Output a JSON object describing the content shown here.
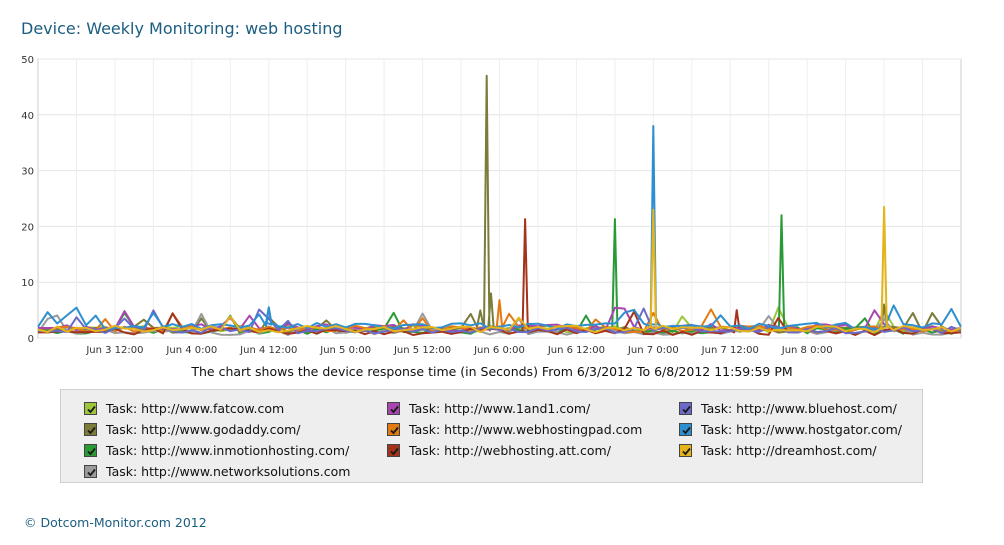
{
  "page": {
    "title": "Device: Weekly Monitoring: web hosting",
    "subtitle": "The chart shows the device response time (in Seconds) From 6/3/2012 To 6/8/2012 11:59:59 PM",
    "footer": "© Dotcom-Monitor.com 2012"
  },
  "chart_data": {
    "type": "line",
    "title": "Device: Weekly Monitoring: web hosting",
    "xlabel": "",
    "ylabel": "",
    "ylim": [
      0,
      50
    ],
    "yticks": [
      "0",
      "10",
      "20",
      "30",
      "40",
      "50"
    ],
    "xlim": [
      "6/3/2012 00:00",
      "6/8/2012 23:59:59"
    ],
    "xticks": [
      "Jun 3 12:00",
      "Jun 4 0:00",
      "Jun 4 12:00",
      "Jun 5 0:00",
      "Jun 5 12:00",
      "Jun 6 0:00",
      "Jun 6 12:00",
      "Jun 7 0:00",
      "Jun 7 12:00",
      "Jun 8 0:00"
    ],
    "grid": true,
    "legend_placement": "bottom",
    "series": [
      {
        "name": "Task: http://www.fatcow.com",
        "color": "#9ec63b",
        "points": [
          [
            "6/3/2012 00:00",
            1.6
          ],
          [
            "6/4/2012 00:00",
            1.7
          ],
          [
            "6/5/2012 00:00",
            1.6
          ],
          [
            "6/6/2012 00:00",
            1.5
          ],
          [
            "6/7/2012 00:00",
            1.6
          ],
          [
            "6/8/2012 00:00",
            1.5
          ],
          [
            "6/8/2012 23:59",
            1.6
          ]
        ]
      },
      {
        "name": "Task: http://www.godaddy.com/",
        "color": "#7b7b3a",
        "points": [
          [
            "6/3/2012 00:00",
            1.4
          ],
          [
            "6/5/2012 12:00",
            1.5
          ],
          [
            "6/5/2012 20:30",
            2.0
          ],
          [
            "6/5/2012 22:00",
            47.0
          ],
          [
            "6/5/2012 22:40",
            8.0
          ],
          [
            "6/5/2012 23:30",
            2.0
          ],
          [
            "6/8/2012 12:00",
            6.0
          ],
          [
            "6/8/2012 23:59",
            1.8
          ]
        ]
      },
      {
        "name": "Task: http://www.inmotionhosting.com/",
        "color": "#2a9a37",
        "points": [
          [
            "6/3/2012 00:00",
            1.2
          ],
          [
            "6/4/2012 06:00",
            4.0
          ],
          [
            "6/6/2012 00:00",
            1.5
          ],
          [
            "6/6/2012 18:00",
            21.3
          ],
          [
            "6/7/2012 20:00",
            22.0
          ],
          [
            "6/8/2012 23:59",
            1.4
          ]
        ]
      },
      {
        "name": "Task: http://www.networksolutions.com",
        "color": "#9a9a9a",
        "points": [
          [
            "6/3/2012 00:00",
            1.0
          ],
          [
            "6/4/2012 00:00",
            1.1
          ],
          [
            "6/5/2012 00:00",
            1.0
          ],
          [
            "6/6/2012 00:00",
            1.1
          ],
          [
            "6/7/2012 00:00",
            1.0
          ],
          [
            "6/8/2012 23:59",
            1.1
          ]
        ]
      },
      {
        "name": "Task: http://www.1and1.com/",
        "color": "#a845b0",
        "points": [
          [
            "6/3/2012 00:00",
            1.8
          ],
          [
            "6/4/2012 09:00",
            4.0
          ],
          [
            "6/5/2012 00:00",
            1.8
          ],
          [
            "6/6/2012 00:00",
            1.9
          ],
          [
            "6/8/2012 23:59",
            1.8
          ]
        ]
      },
      {
        "name": "Task: http://www.webhostingpad.com",
        "color": "#e47a12",
        "points": [
          [
            "6/3/2012 00:00",
            1.5
          ],
          [
            "6/5/2012 00:00",
            1.6
          ],
          [
            "6/6/2012 00:00",
            6.8
          ],
          [
            "6/7/2012 00:00",
            4.5
          ],
          [
            "6/8/2012 23:59",
            1.5
          ]
        ]
      },
      {
        "name": "Task: http://webhosting.att.com/",
        "color": "#a3331b",
        "points": [
          [
            "6/3/2012 00:00",
            1.0
          ],
          [
            "6/5/2012 00:00",
            1.2
          ],
          [
            "6/6/2012 04:00",
            21.3
          ],
          [
            "6/7/2012 13:00",
            5.0
          ],
          [
            "6/8/2012 23:59",
            1.0
          ]
        ]
      },
      {
        "name": "Task: http://www.bluehost.com/",
        "color": "#6a6ac8",
        "points": [
          [
            "6/3/2012 00:00",
            1.3
          ],
          [
            "6/4/2012 00:00",
            1.4
          ],
          [
            "6/5/2012 00:00",
            1.3
          ],
          [
            "6/6/2012 00:00",
            1.4
          ],
          [
            "6/7/2012 00:00",
            1.3
          ],
          [
            "6/8/2012 23:59",
            1.4
          ]
        ]
      },
      {
        "name": "Task: http://www.hostgator.com/",
        "color": "#2e8fd0",
        "points": [
          [
            "6/3/2012 00:00",
            2.0
          ],
          [
            "6/3/2012 18:00",
            4.5
          ],
          [
            "6/4/2012 12:00",
            5.5
          ],
          [
            "6/6/2012 00:00",
            2.0
          ],
          [
            "6/7/2012 00:00",
            38.0
          ],
          [
            "6/8/2012 23:59",
            2.0
          ]
        ]
      },
      {
        "name": "Task: http://dreamhost.com/",
        "color": "#e5b31a",
        "points": [
          [
            "6/3/2012 00:00",
            1.5
          ],
          [
            "6/5/2012 00:00",
            1.6
          ],
          [
            "6/6/2012 00:00",
            1.8
          ],
          [
            "6/7/2012 00:00",
            23.0
          ],
          [
            "6/8/2012 12:00",
            23.5
          ],
          [
            "6/8/2012 23:59",
            1.8
          ]
        ]
      }
    ]
  }
}
